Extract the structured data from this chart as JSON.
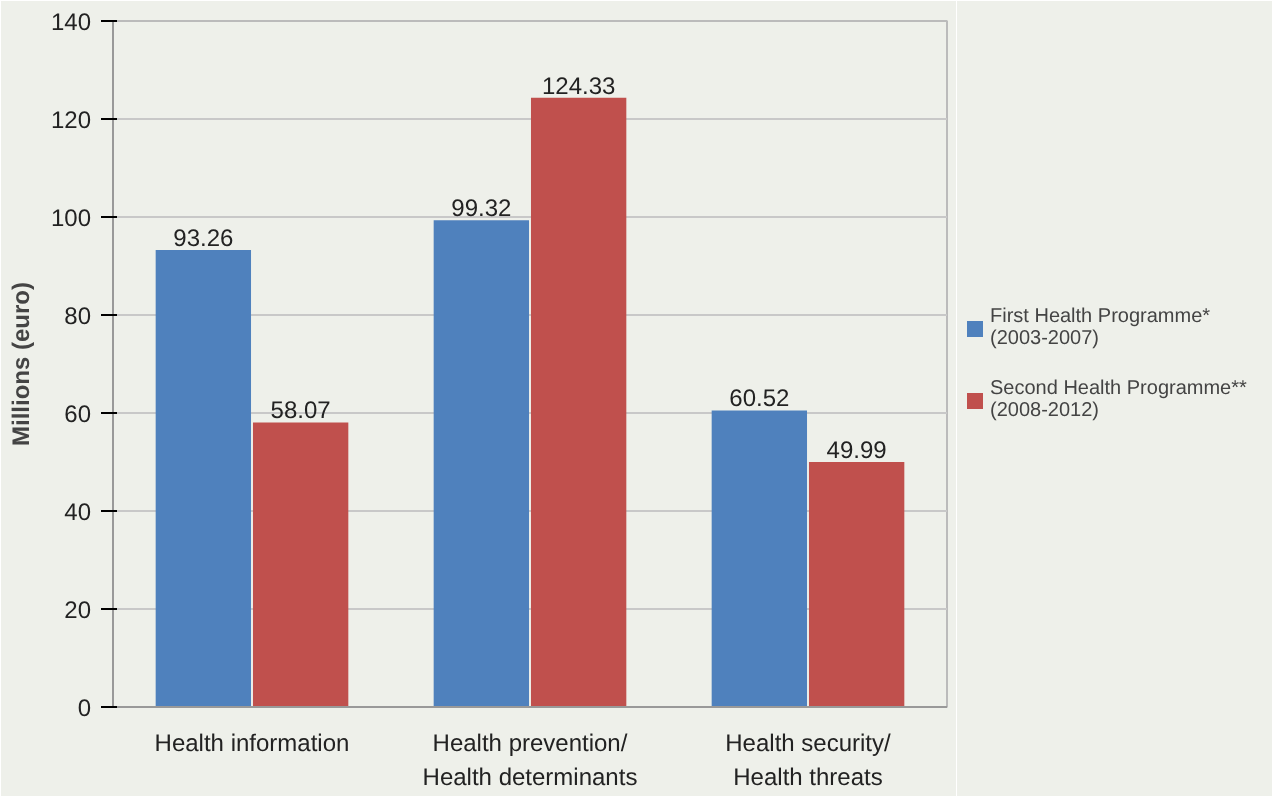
{
  "chart_data": {
    "type": "bar",
    "ylabel": "Millions (euro)",
    "categories": [
      "Health information",
      "Health prevention/\nHealth determinants",
      "Health security/\nHealth threats"
    ],
    "series": [
      {
        "name": "First Health Programme*\n(2003-2007)",
        "color": "#4f81bd",
        "values": [
          93.26,
          99.32,
          60.52
        ]
      },
      {
        "name": "Second Health Programme**\n(2008-2012)",
        "color": "#c0504d",
        "values": [
          58.07,
          124.33,
          49.99
        ]
      }
    ],
    "ylim": [
      0,
      140
    ],
    "yticks": [
      0,
      20,
      40,
      60,
      80,
      100,
      120,
      140
    ],
    "grid": "y",
    "legend": "right",
    "data_labels": true
  }
}
